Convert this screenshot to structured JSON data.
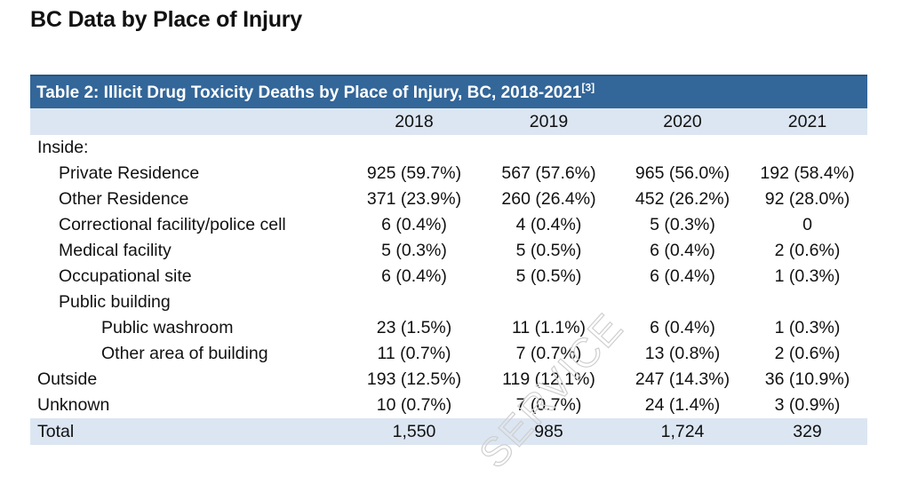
{
  "page": {
    "title": "BC Data by Place of Injury"
  },
  "watermark": {
    "text": "SERVICE"
  },
  "table": {
    "caption": "Table 2: Illicit Drug Toxicity Deaths by Place of Injury, BC, 2018-2021",
    "caption_ref": "[3]",
    "header": [
      "",
      "2018",
      "2019",
      "2020",
      "2021"
    ],
    "rows": [
      {
        "label": "Inside:",
        "level": 0,
        "values": [
          "",
          "",
          "",
          ""
        ]
      },
      {
        "label": "Private Residence",
        "level": 1,
        "values": [
          "925 (59.7%)",
          "567 (57.6%)",
          "965 (56.0%)",
          "192 (58.4%)"
        ]
      },
      {
        "label": "Other Residence",
        "level": 1,
        "values": [
          "371 (23.9%)",
          "260 (26.4%)",
          "452 (26.2%)",
          "92 (28.0%)"
        ]
      },
      {
        "label": "Correctional facility/police cell",
        "level": 1,
        "values": [
          "6 (0.4%)",
          "4 (0.4%)",
          "5 (0.3%)",
          "0"
        ]
      },
      {
        "label": "Medical facility",
        "level": 1,
        "values": [
          "5 (0.3%)",
          "5 (0.5%)",
          "6 (0.4%)",
          "2 (0.6%)"
        ]
      },
      {
        "label": "Occupational site",
        "level": 1,
        "values": [
          "6 (0.4%)",
          "5 (0.5%)",
          "6 (0.4%)",
          "1 (0.3%)"
        ]
      },
      {
        "label": "Public building",
        "level": 1,
        "values": [
          "",
          "",
          "",
          ""
        ]
      },
      {
        "label": "Public washroom",
        "level": 2,
        "values": [
          "23 (1.5%)",
          "11 (1.1%)",
          "6 (0.4%)",
          "1 (0.3%)"
        ]
      },
      {
        "label": "Other area of building",
        "level": 2,
        "values": [
          "11 (0.7%)",
          "7 (0.7%)",
          "13 (0.8%)",
          "2 (0.6%)"
        ]
      },
      {
        "label": "Outside",
        "level": 0,
        "values": [
          "193 (12.5%)",
          "119 (12.1%)",
          "247 (14.3%)",
          "36 (10.9%)"
        ]
      },
      {
        "label": "Unknown",
        "level": 0,
        "values": [
          "10 (0.7%)",
          "7 (0.7%)",
          "24 (1.4%)",
          "3 (0.9%)"
        ]
      }
    ],
    "total": {
      "label": "Total",
      "values": [
        "1,550",
        "985",
        "1,724",
        "329"
      ]
    }
  },
  "colors": {
    "caption_bg": "#336699",
    "header_bg": "#dce6f2",
    "caption_text": "#ffffff"
  }
}
